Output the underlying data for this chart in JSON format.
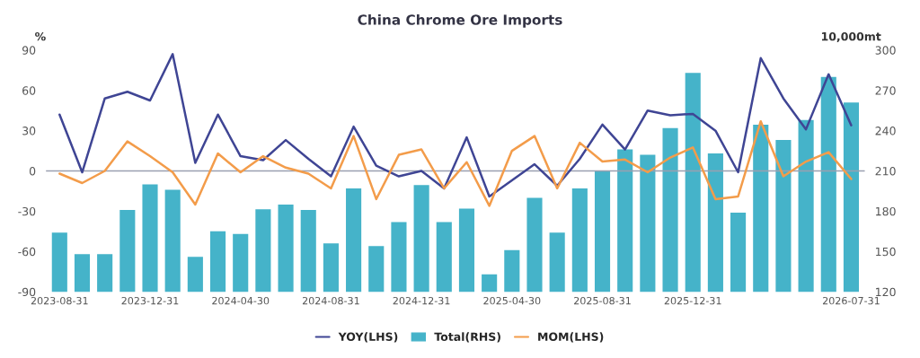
{
  "chart_data": {
    "type": "bar",
    "title": "China Chrome Ore Imports",
    "ylabel": "%",
    "y2label": "10,000mt",
    "categories": [
      "2023-08-31",
      null,
      null,
      null,
      "2023-12-31",
      null,
      null,
      null,
      "2024-04-30",
      null,
      null,
      null,
      "2024-08-31",
      null,
      null,
      null,
      "2024-12-31",
      null,
      null,
      null,
      "2025-04-30",
      null,
      null,
      null,
      "2025-08-31",
      null,
      null,
      null,
      "2025-12-31",
      null,
      null,
      null,
      null,
      null,
      null,
      "2026-07-31"
    ],
    "series": [
      {
        "name": "YOY(LHS)",
        "type": "line",
        "color": "#3f4594",
        "values": [
          42,
          -1,
          54,
          59,
          52.5,
          87,
          6,
          42,
          11,
          8,
          23,
          9,
          -4,
          33,
          4,
          -4,
          0,
          -13,
          25,
          -19,
          -7,
          5,
          -11,
          9,
          34.5,
          16,
          45,
          41.5,
          42.5,
          30,
          -1,
          84,
          54,
          31,
          72,
          34
        ]
      },
      {
        "name": "Total(RHS)",
        "axis": "y2",
        "color": "#45b3c9",
        "values": [
          164,
          148,
          148,
          181,
          200,
          196,
          146,
          165,
          163,
          181.5,
          185,
          181,
          156,
          197,
          154,
          172,
          199.5,
          172,
          182,
          133,
          151,
          190,
          164,
          197,
          210,
          226,
          222,
          242,
          283,
          223,
          179,
          244.5,
          233,
          248,
          280,
          261
        ]
      },
      {
        "name": "MOM(LHS)",
        "type": "line",
        "color": "#f39c4a",
        "values": [
          -2,
          -9,
          0,
          22,
          11,
          -1,
          -25,
          13,
          -1,
          11,
          2.5,
          -2,
          -13,
          26,
          -21,
          12,
          16,
          -13,
          6.5,
          -26,
          15,
          26,
          -13,
          21,
          7,
          8.5,
          -1,
          10,
          17.5,
          -21,
          -19,
          37,
          -4,
          7,
          14,
          -6
        ]
      }
    ],
    "ylim": [
      -90,
      90
    ],
    "yticks": [
      -90,
      -60,
      -30,
      0,
      30,
      60,
      90
    ],
    "y2lim": [
      120,
      300
    ],
    "y2ticks": [
      120,
      150,
      180,
      210,
      240,
      270,
      300
    ],
    "ref_lines": [
      {
        "axis": "y",
        "value": 0,
        "color": "#9aa0b0"
      }
    ],
    "grid": false,
    "legend": "bottom"
  }
}
